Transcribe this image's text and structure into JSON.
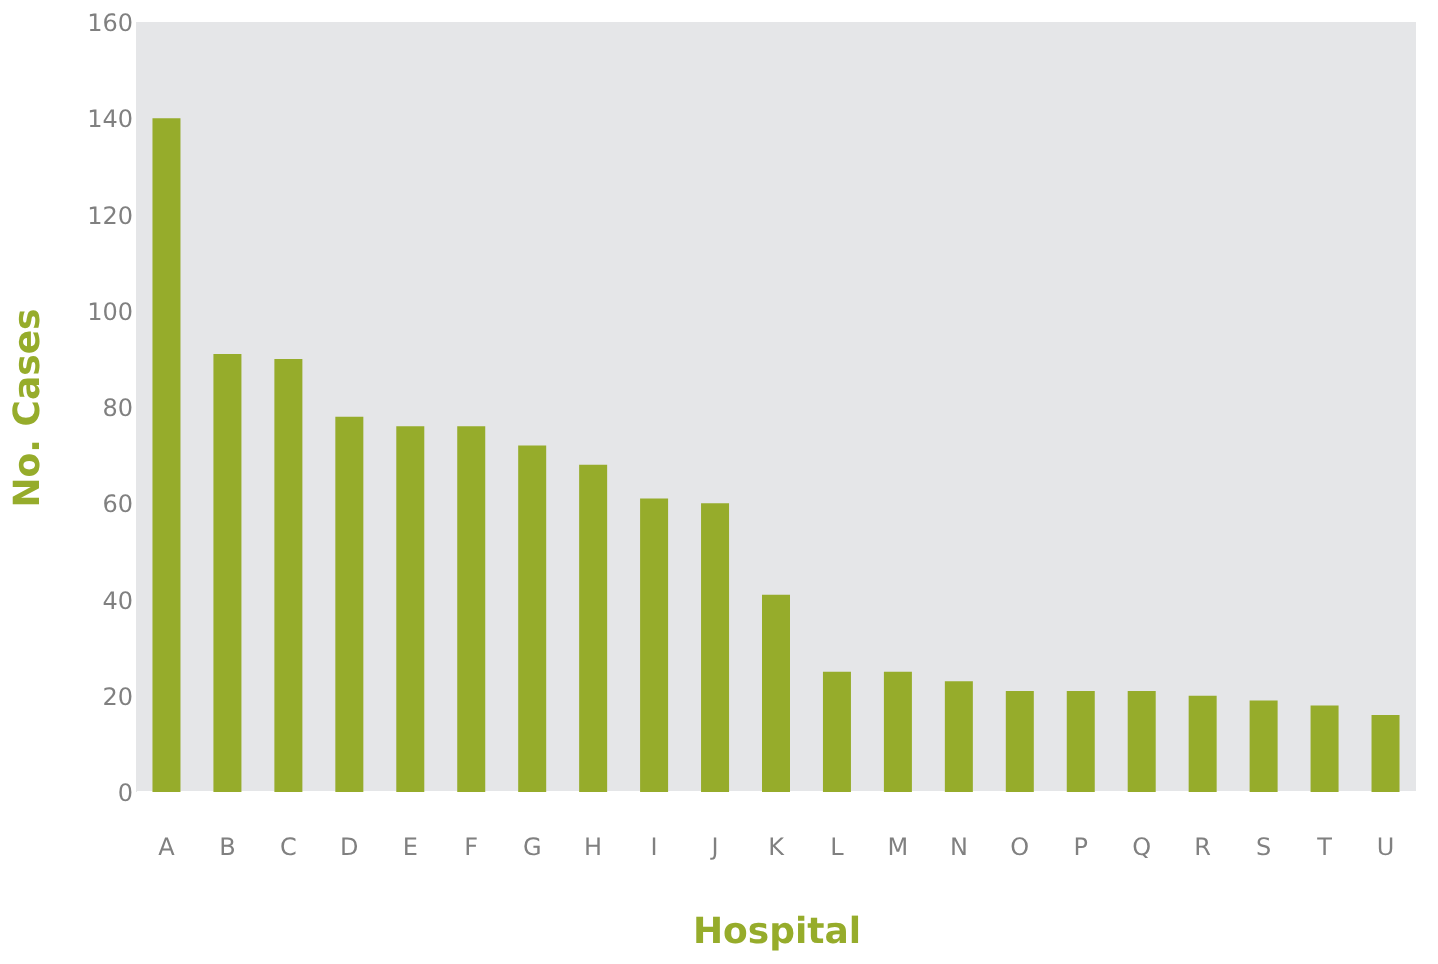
{
  "chart_data": {
    "type": "bar",
    "xlabel": "Hospital",
    "ylabel": "No. Cases",
    "categories": [
      "A",
      "B",
      "C",
      "D",
      "E",
      "F",
      "G",
      "H",
      "I",
      "J",
      "K",
      "L",
      "M",
      "N",
      "O",
      "P",
      "Q",
      "R",
      "S",
      "T",
      "U"
    ],
    "values": [
      140,
      91,
      90,
      78,
      76,
      76,
      72,
      68,
      61,
      60,
      41,
      25,
      25,
      23,
      21,
      21,
      21,
      20,
      19,
      18,
      16
    ],
    "color": "#96ac2b",
    "ylim": [
      0,
      160
    ],
    "yticks": [
      0,
      20,
      40,
      60,
      80,
      100,
      120,
      140,
      160
    ],
    "grid": false
  }
}
